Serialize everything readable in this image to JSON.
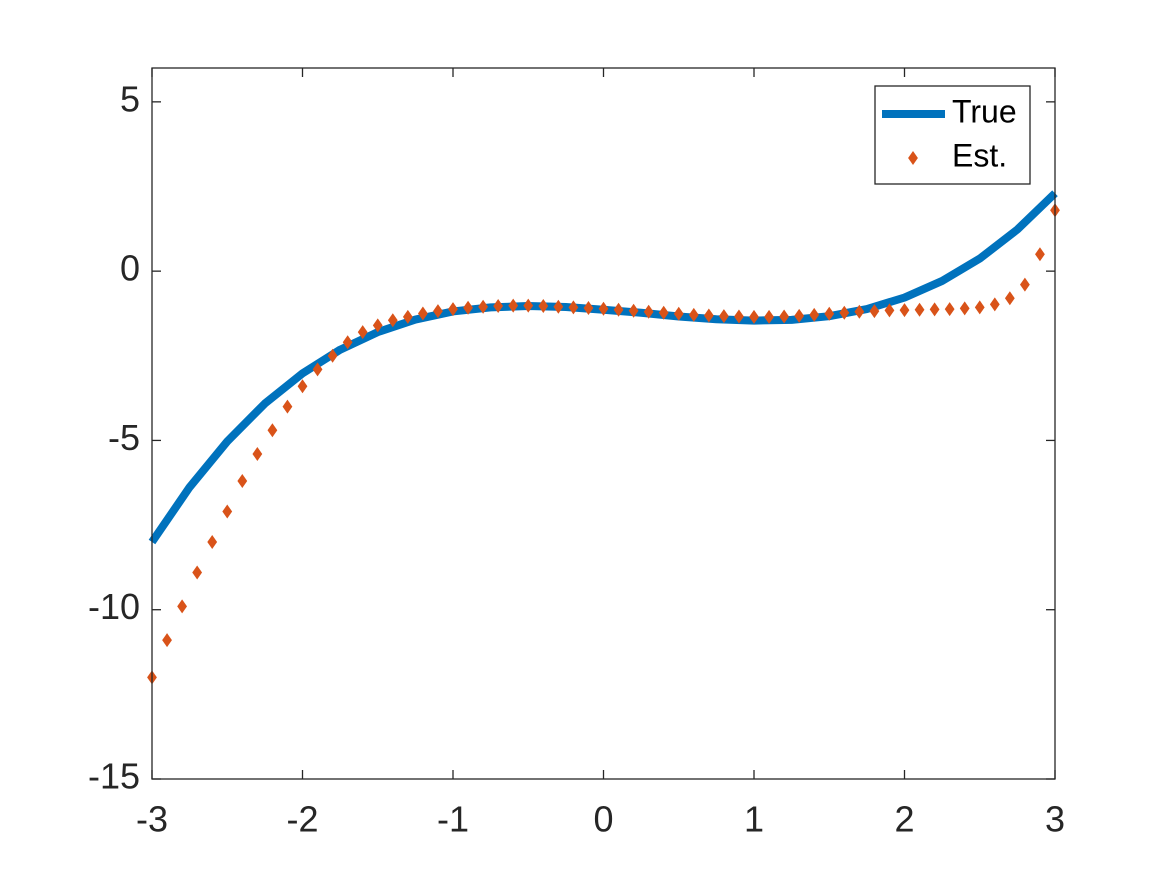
{
  "chart_data": {
    "type": "line",
    "xlim": [
      -3,
      3
    ],
    "xticks": [
      -3,
      -2,
      -1,
      0,
      1,
      2,
      3
    ],
    "ylim": [
      -15,
      6
    ],
    "yticks": [
      -15,
      -10,
      -5,
      0,
      5
    ],
    "legend": "northeast",
    "series": [
      {
        "name": "True",
        "color": "#0072BD",
        "x": [
          -3,
          -2.75,
          -2.5,
          -2.25,
          -2,
          -1.75,
          -1.5,
          -1.25,
          -1,
          -0.75,
          -0.5,
          -0.25,
          0,
          0.25,
          0.5,
          0.75,
          1,
          1.25,
          1.5,
          1.75,
          2,
          2.25,
          2.5,
          2.75,
          3
        ],
        "values": [
          -8.0,
          -6.38,
          -5.03,
          -3.91,
          -3.02,
          -2.32,
          -1.8,
          -1.43,
          -1.19,
          -1.07,
          -1.03,
          -1.06,
          -1.14,
          -1.23,
          -1.34,
          -1.42,
          -1.46,
          -1.44,
          -1.33,
          -1.12,
          -0.78,
          -0.29,
          0.37,
          1.23,
          2.3
        ]
      },
      {
        "name": "Est.",
        "color": "#D95319",
        "marker": "diamond",
        "x": [
          -3,
          -2.9,
          -2.8,
          -2.7,
          -2.6,
          -2.5,
          -2.4,
          -2.3,
          -2.2,
          -2.1,
          -2,
          -1.9,
          -1.8,
          -1.7,
          -1.6,
          -1.5,
          -1.4,
          -1.3,
          -1.2,
          -1.1,
          -1,
          -0.9,
          -0.8,
          -0.7,
          -0.6,
          -0.5,
          -0.4,
          -0.3,
          -0.2,
          -0.1,
          0,
          0.1,
          0.2,
          0.3,
          0.4,
          0.5,
          0.6,
          0.7,
          0.8,
          0.9,
          1,
          1.1,
          1.2,
          1.3,
          1.4,
          1.5,
          1.6,
          1.7,
          1.8,
          1.9,
          2,
          2.1,
          2.2,
          2.3,
          2.4,
          2.5,
          2.6,
          2.7,
          2.8,
          2.9,
          3
        ],
        "values": [
          -12.0,
          -10.9,
          -9.9,
          -8.9,
          -8.0,
          -7.1,
          -6.2,
          -5.4,
          -4.7,
          -4.0,
          -3.4,
          -2.9,
          -2.5,
          -2.1,
          -1.8,
          -1.6,
          -1.45,
          -1.35,
          -1.25,
          -1.18,
          -1.12,
          -1.08,
          -1.05,
          -1.03,
          -1.02,
          -1.02,
          -1.03,
          -1.05,
          -1.07,
          -1.09,
          -1.11,
          -1.14,
          -1.17,
          -1.2,
          -1.23,
          -1.26,
          -1.29,
          -1.31,
          -1.33,
          -1.34,
          -1.35,
          -1.35,
          -1.34,
          -1.32,
          -1.29,
          -1.26,
          -1.23,
          -1.2,
          -1.18,
          -1.16,
          -1.15,
          -1.14,
          -1.13,
          -1.12,
          -1.1,
          -1.07,
          -0.98,
          -0.8,
          -0.4,
          0.5,
          1.8
        ]
      }
    ]
  }
}
